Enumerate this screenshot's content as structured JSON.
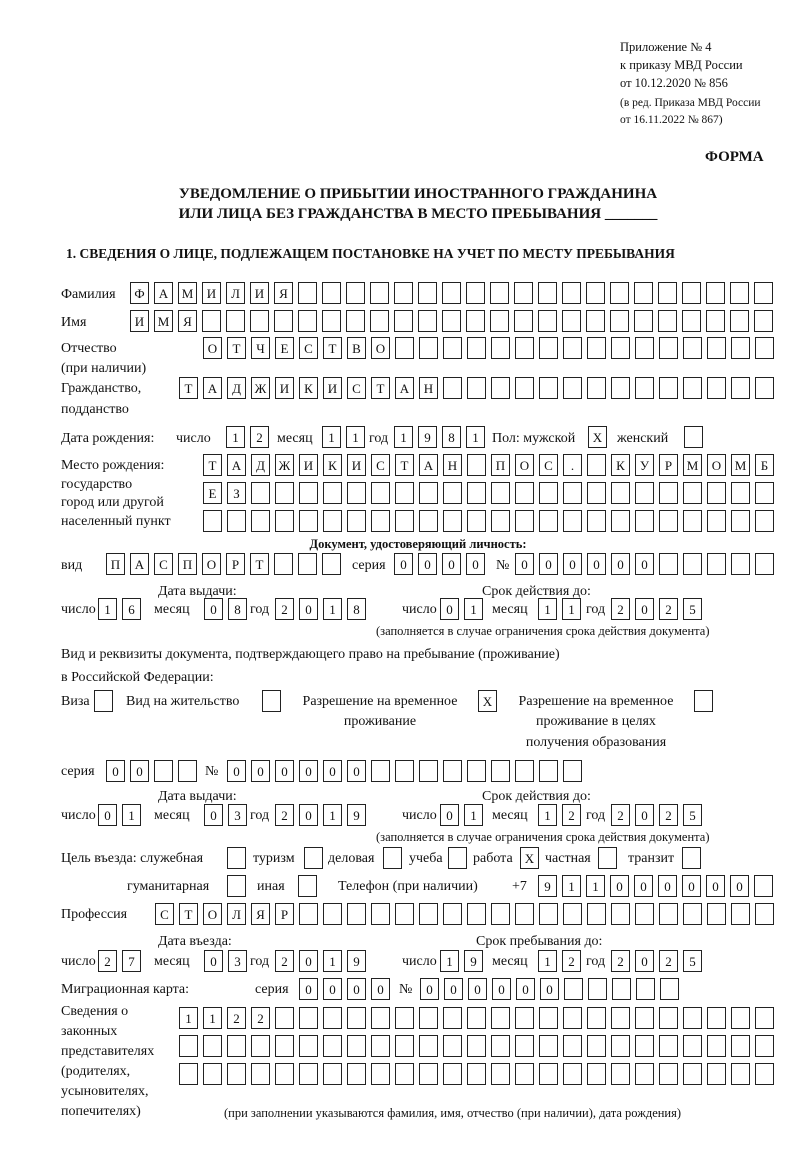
{
  "header": {
    "appendix": "Приложение № 4",
    "order": "к приказу МВД России",
    "order_date": "от 10.12.2020 № 856",
    "revision_1": "(в ред. Приказа МВД России",
    "revision_2": "от 16.11.2022 № 867)",
    "form_label": "ФОРМА"
  },
  "title": {
    "line1": "УВЕДОМЛЕНИЕ О ПРИБЫТИИ ИНОСТРАННОГО ГРАЖДАНИНА",
    "line2": "ИЛИ ЛИЦА БЕЗ ГРАЖДАНСТВА В МЕСТО ПРЕБЫВАНИЯ _______"
  },
  "section1": {
    "heading": "1. СВЕДЕНИЯ О ЛИЦЕ, ПОДЛЕЖАЩЕМ ПОСТАНОВКЕ НА УЧЕТ ПО МЕСТУ ПРЕБЫВАНИЯ",
    "labels": {
      "surname": "Фамилия",
      "name": "Имя",
      "patronymic": "Отчество",
      "patronymic_note": "(при наличии)",
      "citizenship": "Гражданство,",
      "citizenship_2": "подданство",
      "birth_date": "Дата рождения:",
      "day": "число",
      "month": "месяц",
      "year": "год",
      "sex": "Пол: мужской",
      "female": "женский",
      "birthplace": "Место рождения:",
      "birthplace_2": "государство",
      "birthplace_3": "город или другой",
      "birthplace_4": "населенный пункт",
      "id_doc": "Документ, удостоверяющий личность:",
      "kind": "вид",
      "series": "серия",
      "number": "№",
      "issue_date": "Дата выдачи:",
      "valid_until": "Срок действия до:",
      "validity_note": "(заполняется в случае ограничения срока действия документа)",
      "residence_doc_1": "Вид и реквизиты документа, подтверждающего право на пребывание (проживание)",
      "residence_doc_2": "в Российской Федерации:",
      "visa": "Виза",
      "residence_permit": "Вид на жительство",
      "temp_residence_1": "Разрешение на временное",
      "temp_residence_2": "проживание",
      "temp_edu_1": "Разрешение на временное",
      "temp_edu_2": "проживание в целях",
      "temp_edu_3": "получения образования",
      "purpose": "Цель въезда: служебная",
      "tourism": "туризм",
      "business": "деловая",
      "study": "учеба",
      "work": "работа",
      "private": "частная",
      "transit": "транзит",
      "humanitarian": "гуманитарная",
      "other": "иная",
      "phone": "Телефон (при наличии)",
      "phone_prefix": "+7",
      "profession": "Профессия",
      "entry_date": "Дата въезда:",
      "stay_until": "Срок пребывания до:",
      "migration_card": "Миграционная карта:",
      "reps_1": "Сведения о",
      "reps_2": "законных",
      "reps_3": "представителях",
      "reps_4": "(родителях,",
      "reps_5": "усыновителях,",
      "reps_6": "попечителях)",
      "reps_note": "(при заполнении указываются фамилия, имя, отчество (при наличии), дата рождения)"
    },
    "fields": {
      "surname": [
        "Ф",
        "А",
        "М",
        "И",
        "Л",
        "И",
        "Я"
      ],
      "name": [
        "И",
        "М",
        "Я"
      ],
      "patronymic": [
        "О",
        "Т",
        "Ч",
        "Е",
        "С",
        "Т",
        "В",
        "О"
      ],
      "citizenship": [
        "Т",
        "А",
        "Д",
        "Ж",
        "И",
        "К",
        "И",
        "С",
        "Т",
        "А",
        "Н"
      ],
      "birth_day": [
        "1",
        "2"
      ],
      "birth_month": [
        "1",
        "1"
      ],
      "birth_year": [
        "1",
        "9",
        "8",
        "1"
      ],
      "sex_male": [
        "X"
      ],
      "sex_female": [],
      "birthplace_1": [
        "Т",
        "А",
        "Д",
        "Ж",
        "И",
        "К",
        "И",
        "С",
        "Т",
        "А",
        "Н",
        "",
        "П",
        "О",
        "С",
        ".",
        "",
        "К",
        "У",
        "Р",
        "М",
        "О",
        "М",
        "Б"
      ],
      "birthplace_2": [
        "Е",
        "З"
      ],
      "birthplace_3": [],
      "id_kind": [
        "П",
        "А",
        "С",
        "П",
        "О",
        "Р",
        "Т"
      ],
      "id_series": [
        "0",
        "0",
        "0",
        "0"
      ],
      "id_number": [
        "0",
        "0",
        "0",
        "0",
        "0",
        "0"
      ],
      "id_issue_day": [
        "1",
        "6"
      ],
      "id_issue_month": [
        "0",
        "8"
      ],
      "id_issue_year": [
        "2",
        "0",
        "1",
        "8"
      ],
      "id_valid_day": [
        "0",
        "1"
      ],
      "id_valid_month": [
        "1",
        "1"
      ],
      "id_valid_year": [
        "2",
        "0",
        "2",
        "5"
      ],
      "doc_visa": [],
      "doc_residence_permit": [],
      "doc_temp_residence": [
        "X"
      ],
      "doc_temp_edu": [],
      "rd_series": [
        "0",
        "0"
      ],
      "rd_number": [
        "0",
        "0",
        "0",
        "0",
        "0",
        "0"
      ],
      "rd_issue_day": [
        "0",
        "1"
      ],
      "rd_issue_month": [
        "0",
        "3"
      ],
      "rd_issue_year": [
        "2",
        "0",
        "1",
        "9"
      ],
      "rd_valid_day": [
        "0",
        "1"
      ],
      "rd_valid_month": [
        "1",
        "2"
      ],
      "rd_valid_year": [
        "2",
        "0",
        "2",
        "5"
      ],
      "purpose_official": [],
      "purpose_tourism": [],
      "purpose_business": [],
      "purpose_study": [],
      "purpose_work": [
        "X"
      ],
      "purpose_private": [],
      "purpose_transit": [],
      "purpose_humanitarian": [],
      "purpose_other": [],
      "phone": [
        "9",
        "1",
        "1",
        "0",
        "0",
        "0",
        "0",
        "0",
        "0"
      ],
      "profession": [
        "С",
        "Т",
        "О",
        "Л",
        "Я",
        "Р"
      ],
      "entry_day": [
        "2",
        "7"
      ],
      "entry_month": [
        "0",
        "3"
      ],
      "entry_year": [
        "2",
        "0",
        "1",
        "9"
      ],
      "stay_day": [
        "1",
        "9"
      ],
      "stay_month": [
        "1",
        "2"
      ],
      "stay_year": [
        "2",
        "0",
        "2",
        "5"
      ],
      "mc_series": [
        "0",
        "0",
        "0",
        "0"
      ],
      "mc_number": [
        "0",
        "0",
        "0",
        "0",
        "0",
        "0"
      ],
      "reps_1": [
        "1",
        "1",
        "2",
        "2"
      ],
      "reps_2": [],
      "reps_3": []
    }
  }
}
